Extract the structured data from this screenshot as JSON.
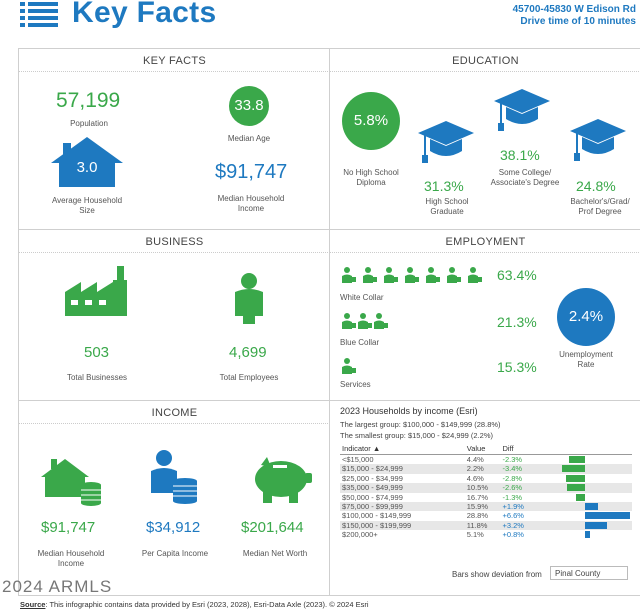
{
  "header": {
    "title": "Key Facts",
    "address": "45700-45830 W Edison Rd",
    "drive_time": "Drive time of 10 minutes",
    "icon": "list-icon"
  },
  "key_facts": {
    "section_title": "KEY FACTS",
    "population": {
      "value": "57,199",
      "label": "Population"
    },
    "median_age": {
      "value": "33.8",
      "label": "Median Age"
    },
    "household_size": {
      "value": "3.0",
      "label": "Average Household Size"
    },
    "median_income": {
      "value": "$91,747",
      "label": "Median Household Income"
    }
  },
  "education": {
    "section_title": "EDUCATION",
    "no_high_school": {
      "value": "5.8%",
      "label": "No High School Diploma"
    },
    "high_school": {
      "value": "31.3%",
      "label": "High School Graduate"
    },
    "some_college": {
      "value": "38.1%",
      "label": "Some College/ Associate's Degree"
    },
    "bachelors": {
      "value": "24.8%",
      "label": "Bachelor's/Grad/ Prof Degree"
    }
  },
  "business": {
    "section_title": "BUSINESS",
    "total_businesses": {
      "value": "503",
      "label": "Total Businesses"
    },
    "total_employees": {
      "value": "4,699",
      "label": "Total Employees"
    }
  },
  "employment": {
    "section_title": "EMPLOYMENT",
    "white_collar": {
      "value": "63.4%",
      "label": "White Collar",
      "icon_count": 7
    },
    "blue_collar": {
      "value": "21.3%",
      "label": "Blue Collar",
      "icon_count": 3
    },
    "services": {
      "value": "15.3%",
      "label": "Services",
      "icon_count": 1
    },
    "unemployment": {
      "value": "2.4%",
      "label": "Unemployment Rate"
    }
  },
  "income": {
    "section_title": "INCOME",
    "median_household": {
      "value": "$91,747",
      "label": "Median Household Income"
    },
    "per_capita": {
      "value": "$34,912",
      "label": "Per Capita Income"
    },
    "net_worth": {
      "value": "$201,644",
      "label": "Median Net Worth"
    }
  },
  "households_by_income": {
    "title": "2023 Households by income (Esri)",
    "largest": "The largest group: $100,000 - $149,999 (28.8%)",
    "smallest": "The smallest group: $15,000 - $24,999 (2.2%)",
    "columns": {
      "indicator": "Indicator ▲",
      "value": "Value",
      "diff": "Diff"
    },
    "rows": [
      {
        "indicator": "<$15,000",
        "value": "4.4%",
        "diff": "-2.3%",
        "d": -2.3
      },
      {
        "indicator": "$15,000 - $24,999",
        "value": "2.2%",
        "diff": "-3.4%",
        "d": -3.4
      },
      {
        "indicator": "$25,000 - $34,999",
        "value": "4.6%",
        "diff": "-2.8%",
        "d": -2.8
      },
      {
        "indicator": "$35,000 - $49,999",
        "value": "10.5%",
        "diff": "-2.6%",
        "d": -2.6
      },
      {
        "indicator": "$50,000 - $74,999",
        "value": "16.7%",
        "diff": "-1.3%",
        "d": -1.3
      },
      {
        "indicator": "$75,000 - $99,999",
        "value": "15.9%",
        "diff": "+1.9%",
        "d": 1.9
      },
      {
        "indicator": "$100,000 - $149,999",
        "value": "28.8%",
        "diff": "+6.6%",
        "d": 6.6
      },
      {
        "indicator": "$150,000 - $199,999",
        "value": "11.8%",
        "diff": "+3.2%",
        "d": 3.2
      },
      {
        "indicator": "$200,000+",
        "value": "5.1%",
        "diff": "+0.8%",
        "d": 0.8
      }
    ],
    "deviation_label": "Bars show deviation from",
    "deviation_area": "Pinal County",
    "negative_color": "#3aa84a",
    "positive_color": "#1e79c0"
  },
  "watermark": "2024 ARMLS",
  "footer": {
    "source_label": "Source",
    "source_text": ": This infographic contains data provided by Esri (2023, 2028), Esri-Data Axle (2023). © 2024 Esri"
  },
  "colors": {
    "blue": "#1e79c0",
    "green": "#3aa84a"
  }
}
